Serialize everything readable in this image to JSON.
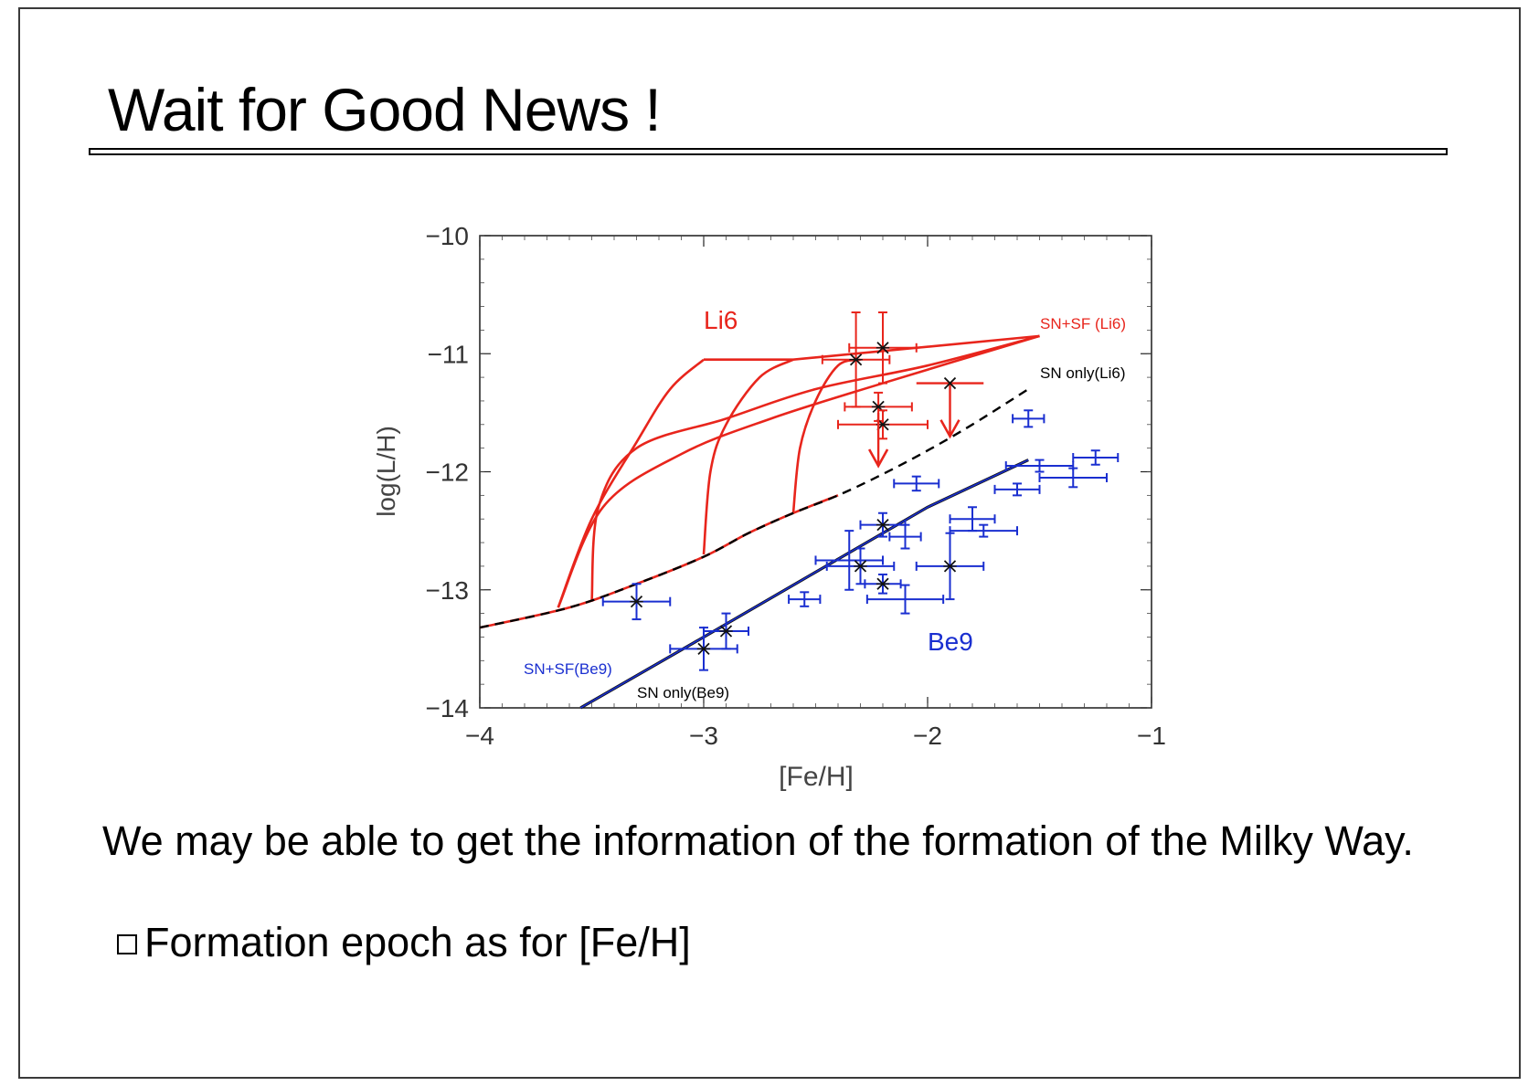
{
  "slide": {
    "title": "Wait for Good News !",
    "paragraph": "We may be able to get the information of the formation of the Milky Way.",
    "bullet": "Formation epoch as for [Fe/H]"
  },
  "colors": {
    "li6": "#e8251c",
    "be9": "#1a2fd0",
    "sn_only": "#000000",
    "frame": "#3a3a3a"
  },
  "chart_data": {
    "type": "scatter",
    "xlabel": "[Fe/H]",
    "ylabel": "log(L/H)",
    "xlim": [
      -4,
      -1
    ],
    "ylim": [
      -14,
      -10
    ],
    "x_ticks": [
      -4,
      -3,
      -2,
      -1
    ],
    "x_tick_labels": [
      "−4",
      "−3",
      "−2",
      "−1"
    ],
    "y_ticks": [
      -10,
      -11,
      -12,
      -13,
      -14
    ],
    "y_tick_labels": [
      "−10",
      "−11",
      "−12",
      "−13",
      "−14"
    ],
    "labels": {
      "li6": "Li6",
      "be9": "Be9",
      "sn_sf_li6": "SN+SF (Li6)",
      "sn_only_li6": "SN only(Li6)",
      "sn_sf_be9": "SN+SF(Be9)",
      "sn_only_be9": "SN only(Be9)"
    },
    "curves": {
      "sn_only_li6": [
        [
          -4.0,
          -13.32
        ],
        [
          -3.6,
          -13.15
        ],
        [
          -3.3,
          -12.95
        ],
        [
          -3.0,
          -12.72
        ],
        [
          -2.8,
          -12.52
        ],
        [
          -2.6,
          -12.35
        ],
        [
          -2.4,
          -12.2
        ],
        [
          -2.2,
          -12.02
        ],
        [
          -2.0,
          -11.82
        ],
        [
          -1.8,
          -11.6
        ],
        [
          -1.55,
          -11.3
        ]
      ],
      "sn_sf_be9": [
        [
          -3.55,
          -14.0
        ],
        [
          -3.0,
          -13.4
        ],
        [
          -2.5,
          -12.85
        ],
        [
          -2.0,
          -12.3
        ],
        [
          -1.55,
          -11.9
        ]
      ],
      "sn_sf_li6_envelope": [
        [
          -3.0,
          -11.05
        ],
        [
          -2.6,
          -11.05
        ],
        [
          -1.5,
          -10.85
        ]
      ],
      "sn_sf_li6_tracks": [
        [
          [
            -3.65,
            -13.15
          ],
          [
            -3.5,
            -12.4
          ],
          [
            -3.3,
            -11.75
          ],
          [
            -3.15,
            -11.3
          ],
          [
            -3.0,
            -11.05
          ]
        ],
        [
          [
            -3.0,
            -12.7
          ],
          [
            -2.97,
            -12.0
          ],
          [
            -2.9,
            -11.6
          ],
          [
            -2.75,
            -11.2
          ],
          [
            -2.6,
            -11.05
          ]
        ],
        [
          [
            -2.6,
            -12.35
          ],
          [
            -2.57,
            -11.8
          ],
          [
            -2.5,
            -11.4
          ],
          [
            -2.4,
            -11.1
          ],
          [
            -2.3,
            -11.05
          ]
        ]
      ],
      "sn_sf_li6_cross": [
        [
          [
            -3.5,
            -13.1
          ],
          [
            -3.47,
            -12.3
          ],
          [
            -3.3,
            -11.8
          ],
          [
            -2.9,
            -11.55
          ],
          [
            -2.5,
            -11.3
          ],
          [
            -2.0,
            -11.1
          ],
          [
            -1.5,
            -10.85
          ]
        ],
        [
          [
            -3.65,
            -13.15
          ],
          [
            -3.45,
            -12.3
          ],
          [
            -3.1,
            -11.85
          ],
          [
            -2.7,
            -11.55
          ],
          [
            -2.2,
            -11.25
          ],
          [
            -1.5,
            -10.85
          ]
        ]
      ]
    },
    "li6_points": [
      {
        "x": -2.32,
        "y": -11.05,
        "xerr": 0.15,
        "yerr": 0.4
      },
      {
        "x": -2.2,
        "y": -10.95,
        "xerr": 0.15,
        "yerr": 0.3
      },
      {
        "x": -2.22,
        "y": -11.45,
        "xerr": 0.15,
        "yerr": 0.12
      },
      {
        "x": -2.2,
        "y": -11.6,
        "xerr": 0.2,
        "yerr": 0.12
      }
    ],
    "li6_upper_limits": [
      {
        "x": -2.22,
        "y": -11.5,
        "to": -11.95
      },
      {
        "x": -1.9,
        "y": -11.25,
        "to": -11.7,
        "xerr": 0.15
      }
    ],
    "be9_points": [
      {
        "x": -3.3,
        "y": -13.1,
        "xerr": 0.15,
        "yerr": 0.15,
        "star": true
      },
      {
        "x": -3.0,
        "y": -13.5,
        "xerr": 0.15,
        "yerr": 0.18,
        "star": true
      },
      {
        "x": -2.9,
        "y": -13.35,
        "xerr": 0.1,
        "yerr": 0.15,
        "star": true
      },
      {
        "x": -2.35,
        "y": -12.75,
        "xerr": 0.15,
        "yerr": 0.25
      },
      {
        "x": -2.3,
        "y": -12.8,
        "xerr": 0.15,
        "yerr": 0.15,
        "star": true
      },
      {
        "x": -2.2,
        "y": -12.45,
        "xerr": 0.1,
        "yerr": 0.1,
        "star": true
      },
      {
        "x": -2.2,
        "y": -12.95,
        "xerr": 0.08,
        "yerr": 0.08,
        "star": true
      },
      {
        "x": -2.1,
        "y": -13.08,
        "xerr": 0.17,
        "yerr": 0.12
      },
      {
        "x": -2.55,
        "y": -13.08,
        "xerr": 0.07,
        "yerr": 0.06
      },
      {
        "x": -1.9,
        "y": -12.8,
        "xerr": 0.15,
        "yerr": 0.28,
        "star": true
      },
      {
        "x": -2.05,
        "y": -12.1,
        "xerr": 0.1,
        "yerr": 0.06
      },
      {
        "x": -2.1,
        "y": -12.55,
        "xerr": 0.07,
        "yerr": 0.1
      },
      {
        "x": -1.8,
        "y": -12.4,
        "xerr": 0.1,
        "yerr": 0.1
      },
      {
        "x": -1.75,
        "y": -12.5,
        "xerr": 0.15,
        "yerr": 0.05
      },
      {
        "x": -1.6,
        "y": -12.15,
        "xerr": 0.1,
        "yerr": 0.05
      },
      {
        "x": -1.55,
        "y": -11.55,
        "xerr": 0.07,
        "yerr": 0.07
      },
      {
        "x": -1.5,
        "y": -11.95,
        "xerr": 0.15,
        "yerr": 0.05
      },
      {
        "x": -1.35,
        "y": -12.05,
        "xerr": 0.15,
        "yerr": 0.08
      },
      {
        "x": -1.25,
        "y": -11.88,
        "xerr": 0.1,
        "yerr": 0.06
      }
    ]
  }
}
